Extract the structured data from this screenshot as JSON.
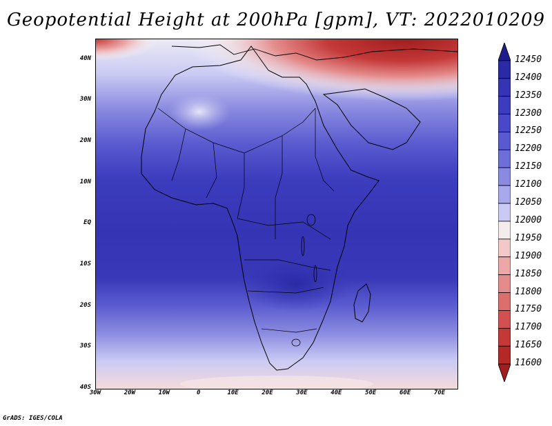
{
  "title": "Geopotential Height at 200hPa [gpm], VT: 2022010209",
  "credit": "GrADS: IGES/COLA",
  "map": {
    "lon_range": [
      -30,
      75
    ],
    "lat_range": [
      -40,
      45
    ],
    "lat_ticks": [
      {
        "value": 40,
        "label": "40N"
      },
      {
        "value": 30,
        "label": "30N"
      },
      {
        "value": 20,
        "label": "20N"
      },
      {
        "value": 10,
        "label": "10N"
      },
      {
        "value": 0,
        "label": "EQ"
      },
      {
        "value": -10,
        "label": "10S"
      },
      {
        "value": -20,
        "label": "20S"
      },
      {
        "value": -30,
        "label": "30S"
      },
      {
        "value": -40,
        "label": "40S"
      }
    ],
    "lon_ticks": [
      {
        "value": -30,
        "label": "30W"
      },
      {
        "value": -20,
        "label": "20W"
      },
      {
        "value": -10,
        "label": "10W"
      },
      {
        "value": 0,
        "label": "0"
      },
      {
        "value": 10,
        "label": "10E"
      },
      {
        "value": 20,
        "label": "20E"
      },
      {
        "value": 30,
        "label": "30E"
      },
      {
        "value": 40,
        "label": "40E"
      },
      {
        "value": 50,
        "label": "50E"
      },
      {
        "value": 60,
        "label": "60E"
      },
      {
        "value": 70,
        "label": "70E"
      }
    ]
  },
  "colorbar": {
    "levels": [
      "12450",
      "12400",
      "12350",
      "12300",
      "12250",
      "12200",
      "12150",
      "12100",
      "12050",
      "12000",
      "11950",
      "11900",
      "11850",
      "11800",
      "11750",
      "11700",
      "11650",
      "11600"
    ],
    "colors": [
      "#1e1e8c",
      "#2a2aa6",
      "#3434b4",
      "#3c3cbe",
      "#4848c8",
      "#5a5ad0",
      "#6e6ed8",
      "#8a8ae0",
      "#a8a8ec",
      "#cacaf4",
      "#f4ecec",
      "#f4c8c8",
      "#eca8a8",
      "#e48c8c",
      "#dc6e6e",
      "#d25050",
      "#c43838",
      "#b42828",
      "#a01e1e"
    ]
  }
}
